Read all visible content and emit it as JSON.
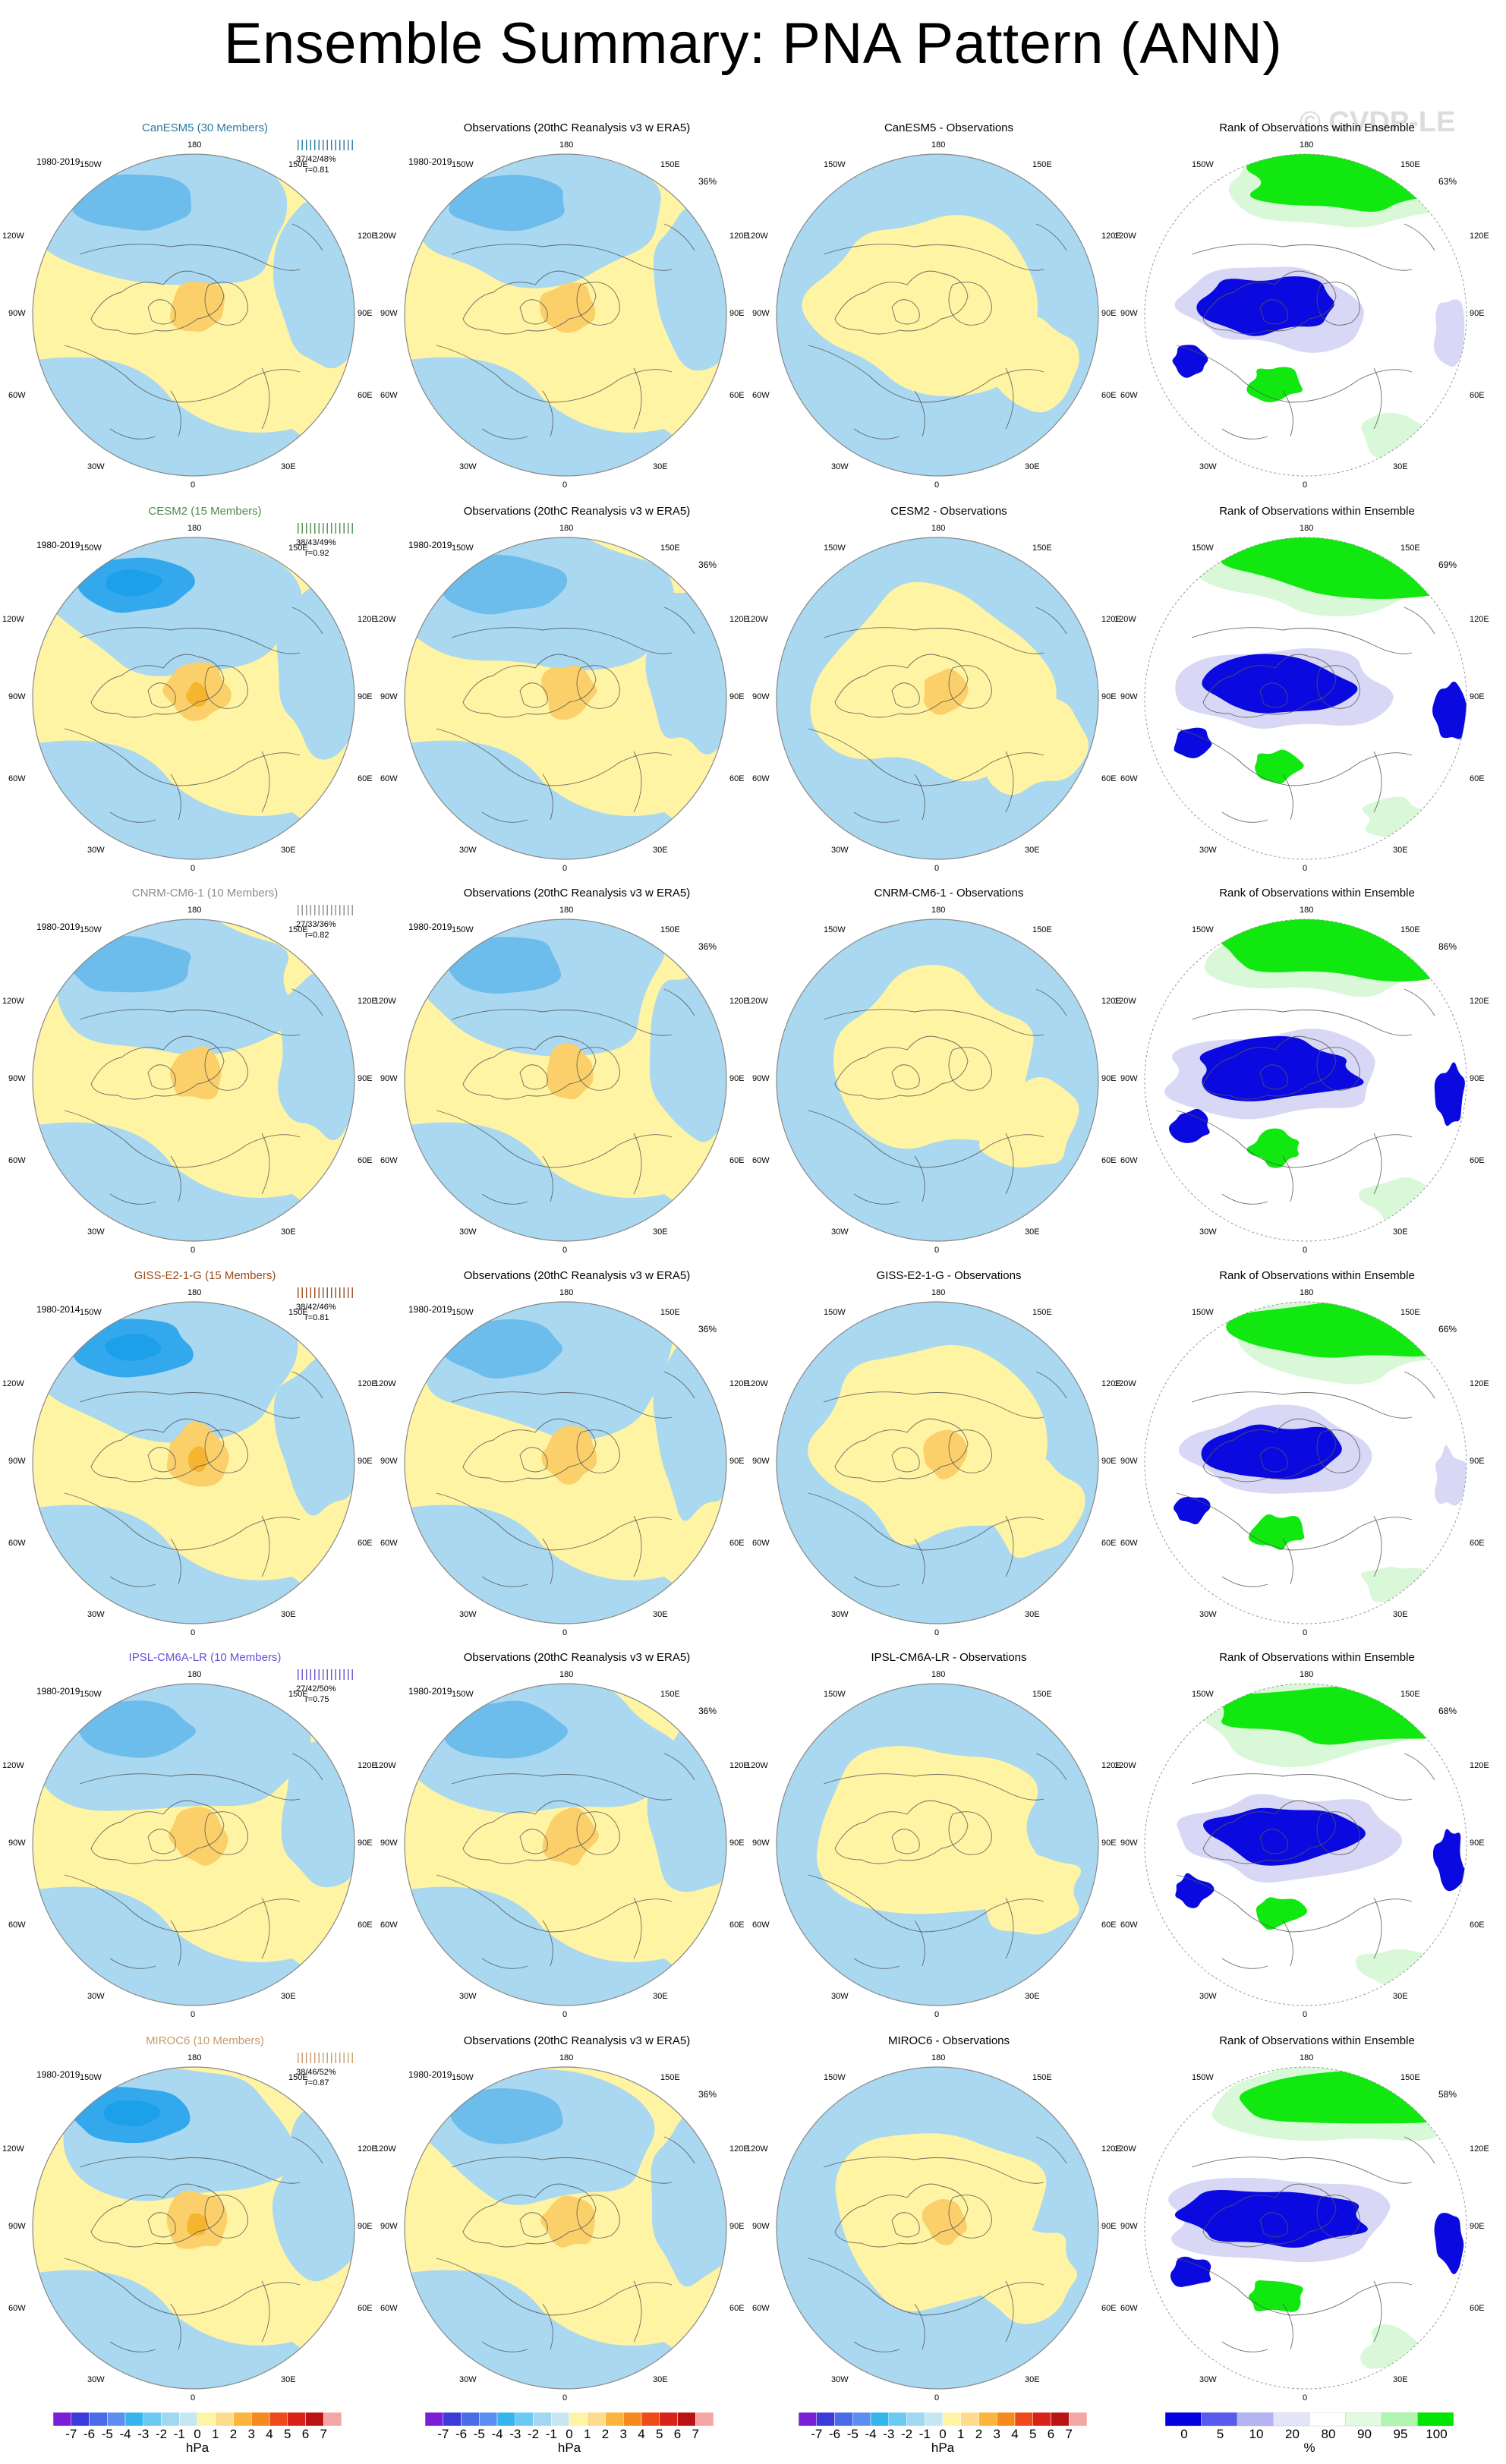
{
  "title": "Ensemble Summary: PNA Pattern (ANN)",
  "watermark": "© CVDP-LE",
  "obs_title": "Observations (20thC Reanalysis v3 w ERA5)",
  "rank_title": "Rank of Observations within Ensemble",
  "longitude_labels": {
    "top": "180",
    "bottom": "0",
    "upper_left": "150W",
    "upper_right": "150E",
    "mid_upper_left": "120W",
    "mid_upper_right": "120E",
    "left": "90W",
    "right": "90E",
    "mid_lower_left": "60W",
    "mid_lower_right": "60E",
    "lower_left": "30W",
    "lower_right": "30E"
  },
  "rows": [
    {
      "model": "CanESM5 (30 Members)",
      "model_color": "#2a7a9c",
      "period": "1980-2019",
      "stats": "37/42/48%",
      "r": "r=0.81",
      "obs_period": "1980-2019",
      "obs_pct": "36%",
      "diff_title": "CanESM5 - Observations",
      "rank_pct": "63%"
    },
    {
      "model": "CESM2 (15 Members)",
      "model_color": "#4f8a4f",
      "period": "1980-2019",
      "stats": "38/43/49%",
      "r": "r=0.92",
      "obs_period": "1980-2019",
      "obs_pct": "36%",
      "diff_title": "CESM2 - Observations",
      "rank_pct": "69%"
    },
    {
      "model": "CNRM-CM6-1 (10 Members)",
      "model_color": "#8c8c8c",
      "period": "1980-2019",
      "stats": "27/33/36%",
      "r": "r=0.82",
      "obs_period": "1980-2019",
      "obs_pct": "36%",
      "diff_title": "CNRM-CM6-1 - Observations",
      "rank_pct": "86%"
    },
    {
      "model": "GISS-E2-1-G (15 Members)",
      "model_color": "#9a4a1a",
      "period": "1980-2014",
      "stats": "38/42/46%",
      "r": "r=0.81",
      "obs_period": "1980-2019",
      "obs_pct": "36%",
      "diff_title": "GISS-E2-1-G - Observations",
      "rank_pct": "66%"
    },
    {
      "model": "IPSL-CM6A-LR (10 Members)",
      "model_color": "#6a4fd6",
      "period": "1980-2019",
      "stats": "27/42/50%",
      "r": "r=0.75",
      "obs_period": "1980-2019",
      "obs_pct": "36%",
      "diff_title": "IPSL-CM6A-LR - Observations",
      "rank_pct": "68%"
    },
    {
      "model": "MIROC6 (10 Members)",
      "model_color": "#c89a6a",
      "period": "1980-2019",
      "stats": "38/46/52%",
      "r": "r=0.87",
      "obs_period": "1980-2019",
      "obs_pct": "36%",
      "diff_title": "MIROC6 - Observations",
      "rank_pct": "58%"
    }
  ],
  "colorbar_hpa": {
    "labels": [
      "-7",
      "-6",
      "-5",
      "-4",
      "-3",
      "-2",
      "-1",
      "0",
      "1",
      "2",
      "3",
      "4",
      "5",
      "6",
      "7"
    ],
    "colors": [
      "#7b1fd6",
      "#3b3bd9",
      "#4a6ce8",
      "#5a8ef0",
      "#34b5ee",
      "#6ccaf2",
      "#9fd8f0",
      "#c6e6f4",
      "#fff3a6",
      "#fddc8e",
      "#fbb53e",
      "#f58a1e",
      "#ee4a1c",
      "#d9221a",
      "#b81414",
      "#f4a6a6"
    ],
    "unit": "hPa"
  },
  "colorbar_rank": {
    "labels": [
      "0",
      "5",
      "10",
      "20",
      "80",
      "90",
      "95",
      "100"
    ],
    "colors": [
      "#0000e0",
      "#5a5aee",
      "#b4b4f4",
      "#e4e4fa",
      "#ffffff",
      "#e2fae2",
      "#b0f5b0",
      "#00e600"
    ],
    "unit": "%"
  }
}
